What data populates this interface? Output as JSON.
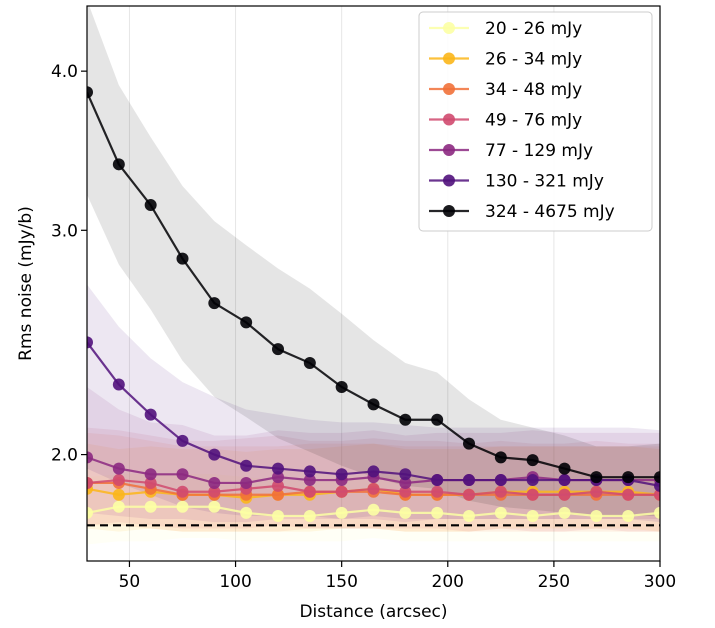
{
  "chart_data": {
    "type": "line",
    "xlabel": "Distance (arcsec)",
    "ylabel": "Rms noise (mJy/b)",
    "xlim": [
      30,
      300
    ],
    "ylim": [
      1.65,
      4.5
    ],
    "y_scale": "log",
    "x_ticks": [
      50,
      100,
      150,
      200,
      250,
      300
    ],
    "x_tick_labels": [
      "50",
      "100",
      "150",
      "200",
      "250",
      "300"
    ],
    "y_ticks": [
      2.0,
      3.0,
      4.0
    ],
    "y_tick_labels": [
      "2.0",
      "3.0",
      "4.0"
    ],
    "grid": "vertical",
    "legend_position": "top-right",
    "reference_line": {
      "y": 1.76,
      "style": "dashed",
      "color": "#000000"
    },
    "x": [
      30,
      45,
      60,
      75,
      90,
      105,
      120,
      135,
      150,
      165,
      180,
      195,
      210,
      225,
      240,
      255,
      270,
      285,
      300
    ],
    "series": [
      {
        "name": "20 - 26 mJy",
        "color": "#fcffa4",
        "values": [
          1.8,
          1.82,
          1.82,
          1.82,
          1.82,
          1.8,
          1.79,
          1.79,
          1.8,
          1.81,
          1.8,
          1.8,
          1.79,
          1.8,
          1.79,
          1.8,
          1.79,
          1.79,
          1.8
        ],
        "band_low": [
          1.7,
          1.71,
          1.71,
          1.72,
          1.72,
          1.71,
          1.71,
          1.71,
          1.71,
          1.72,
          1.71,
          1.71,
          1.71,
          1.71,
          1.71,
          1.71,
          1.71,
          1.71,
          1.71
        ],
        "band_high": [
          1.92,
          1.93,
          1.93,
          1.93,
          1.93,
          1.92,
          1.91,
          1.91,
          1.92,
          1.92,
          1.92,
          1.92,
          1.91,
          1.92,
          1.91,
          1.92,
          1.91,
          1.91,
          1.92
        ]
      },
      {
        "name": "26 - 34 mJy",
        "color": "#fbb61a",
        "values": [
          1.88,
          1.86,
          1.87,
          1.86,
          1.86,
          1.85,
          1.86,
          1.86,
          1.87,
          1.88,
          1.86,
          1.86,
          1.86,
          1.87,
          1.87,
          1.87,
          1.87,
          1.87,
          1.86
        ],
        "band_low": [
          1.75,
          1.74,
          1.75,
          1.74,
          1.74,
          1.74,
          1.74,
          1.74,
          1.75,
          1.75,
          1.74,
          1.74,
          1.74,
          1.75,
          1.75,
          1.75,
          1.75,
          1.75,
          1.74
        ],
        "band_high": [
          2.04,
          2.02,
          2.03,
          2.02,
          2.02,
          2.01,
          2.02,
          2.02,
          2.03,
          2.04,
          2.02,
          2.02,
          2.02,
          2.03,
          2.03,
          2.03,
          2.03,
          2.03,
          2.02
        ]
      },
      {
        "name": "34 - 48 mJy",
        "color": "#f1713a",
        "values": [
          1.9,
          1.9,
          1.88,
          1.86,
          1.86,
          1.86,
          1.86,
          1.87,
          1.87,
          1.87,
          1.86,
          1.86,
          1.86,
          1.86,
          1.86,
          1.86,
          1.86,
          1.86,
          1.86
        ],
        "band_low": [
          1.76,
          1.76,
          1.75,
          1.74,
          1.74,
          1.74,
          1.74,
          1.75,
          1.75,
          1.75,
          1.74,
          1.74,
          1.74,
          1.74,
          1.74,
          1.74,
          1.74,
          1.74,
          1.74
        ],
        "band_high": [
          2.08,
          2.07,
          2.05,
          2.03,
          2.03,
          2.03,
          2.03,
          2.04,
          2.04,
          2.04,
          2.03,
          2.03,
          2.03,
          2.03,
          2.03,
          2.03,
          2.03,
          2.03,
          2.03
        ]
      },
      {
        "name": "49 - 76 mJy",
        "color": "#d04a6f",
        "values": [
          1.9,
          1.91,
          1.9,
          1.87,
          1.87,
          1.88,
          1.89,
          1.87,
          1.87,
          1.88,
          1.87,
          1.87,
          1.86,
          1.87,
          1.86,
          1.86,
          1.87,
          1.86,
          1.86
        ],
        "band_low": [
          1.76,
          1.77,
          1.76,
          1.75,
          1.75,
          1.75,
          1.76,
          1.75,
          1.75,
          1.75,
          1.75,
          1.75,
          1.74,
          1.75,
          1.74,
          1.74,
          1.75,
          1.74,
          1.74
        ],
        "band_high": [
          2.1,
          2.09,
          2.07,
          2.05,
          2.05,
          2.06,
          2.07,
          2.05,
          2.05,
          2.06,
          2.05,
          2.05,
          2.04,
          2.05,
          2.04,
          2.04,
          2.05,
          2.04,
          2.04
        ]
      },
      {
        "name": "77 - 129 mJy",
        "color": "#8c2981",
        "values": [
          1.99,
          1.95,
          1.93,
          1.93,
          1.9,
          1.9,
          1.92,
          1.91,
          1.91,
          1.92,
          1.9,
          1.91,
          1.91,
          1.91,
          1.92,
          1.91,
          1.91,
          1.91,
          1.91
        ],
        "band_low": [
          1.8,
          1.79,
          1.78,
          1.78,
          1.77,
          1.77,
          1.78,
          1.78,
          1.78,
          1.78,
          1.77,
          1.78,
          1.78,
          1.78,
          1.78,
          1.78,
          1.78,
          1.78,
          1.78
        ],
        "band_high": [
          2.26,
          2.17,
          2.12,
          2.11,
          2.07,
          2.07,
          2.09,
          2.08,
          2.08,
          2.09,
          2.07,
          2.08,
          2.08,
          2.08,
          2.09,
          2.08,
          2.08,
          2.08,
          2.08
        ]
      },
      {
        "name": "130 - 321 mJy",
        "color": "#51127c",
        "values": [
          2.45,
          2.27,
          2.15,
          2.05,
          2.0,
          1.96,
          1.95,
          1.94,
          1.93,
          1.94,
          1.93,
          1.91,
          1.91,
          1.91,
          1.91,
          1.91,
          1.91,
          1.91,
          1.89
        ],
        "band_low": [
          1.95,
          1.9,
          1.86,
          1.82,
          1.8,
          1.79,
          1.79,
          1.79,
          1.78,
          1.79,
          1.78,
          1.78,
          1.78,
          1.78,
          1.78,
          1.78,
          1.78,
          1.78,
          1.77
        ],
        "band_high": [
          2.72,
          2.52,
          2.38,
          2.28,
          2.22,
          2.17,
          2.15,
          2.13,
          2.12,
          2.12,
          2.11,
          2.1,
          2.1,
          2.1,
          2.1,
          2.1,
          2.1,
          2.1,
          2.09
        ]
      },
      {
        "name": "324 - 4675 mJy",
        "color": "#000004",
        "values": [
          3.85,
          3.38,
          3.14,
          2.85,
          2.63,
          2.54,
          2.42,
          2.36,
          2.26,
          2.19,
          2.13,
          2.13,
          2.04,
          1.99,
          1.98,
          1.95,
          1.92,
          1.92,
          1.92
        ],
        "band_low": [
          3.2,
          2.82,
          2.6,
          2.37,
          2.22,
          2.14,
          2.06,
          2.01,
          1.96,
          1.92,
          1.89,
          1.88,
          1.84,
          1.82,
          1.81,
          1.8,
          1.79,
          1.79,
          1.79
        ],
        "band_high": [
          4.55,
          3.9,
          3.55,
          3.25,
          3.05,
          2.92,
          2.8,
          2.7,
          2.58,
          2.46,
          2.36,
          2.32,
          2.21,
          2.13,
          2.1,
          2.07,
          2.03,
          2.03,
          2.04
        ]
      }
    ]
  }
}
